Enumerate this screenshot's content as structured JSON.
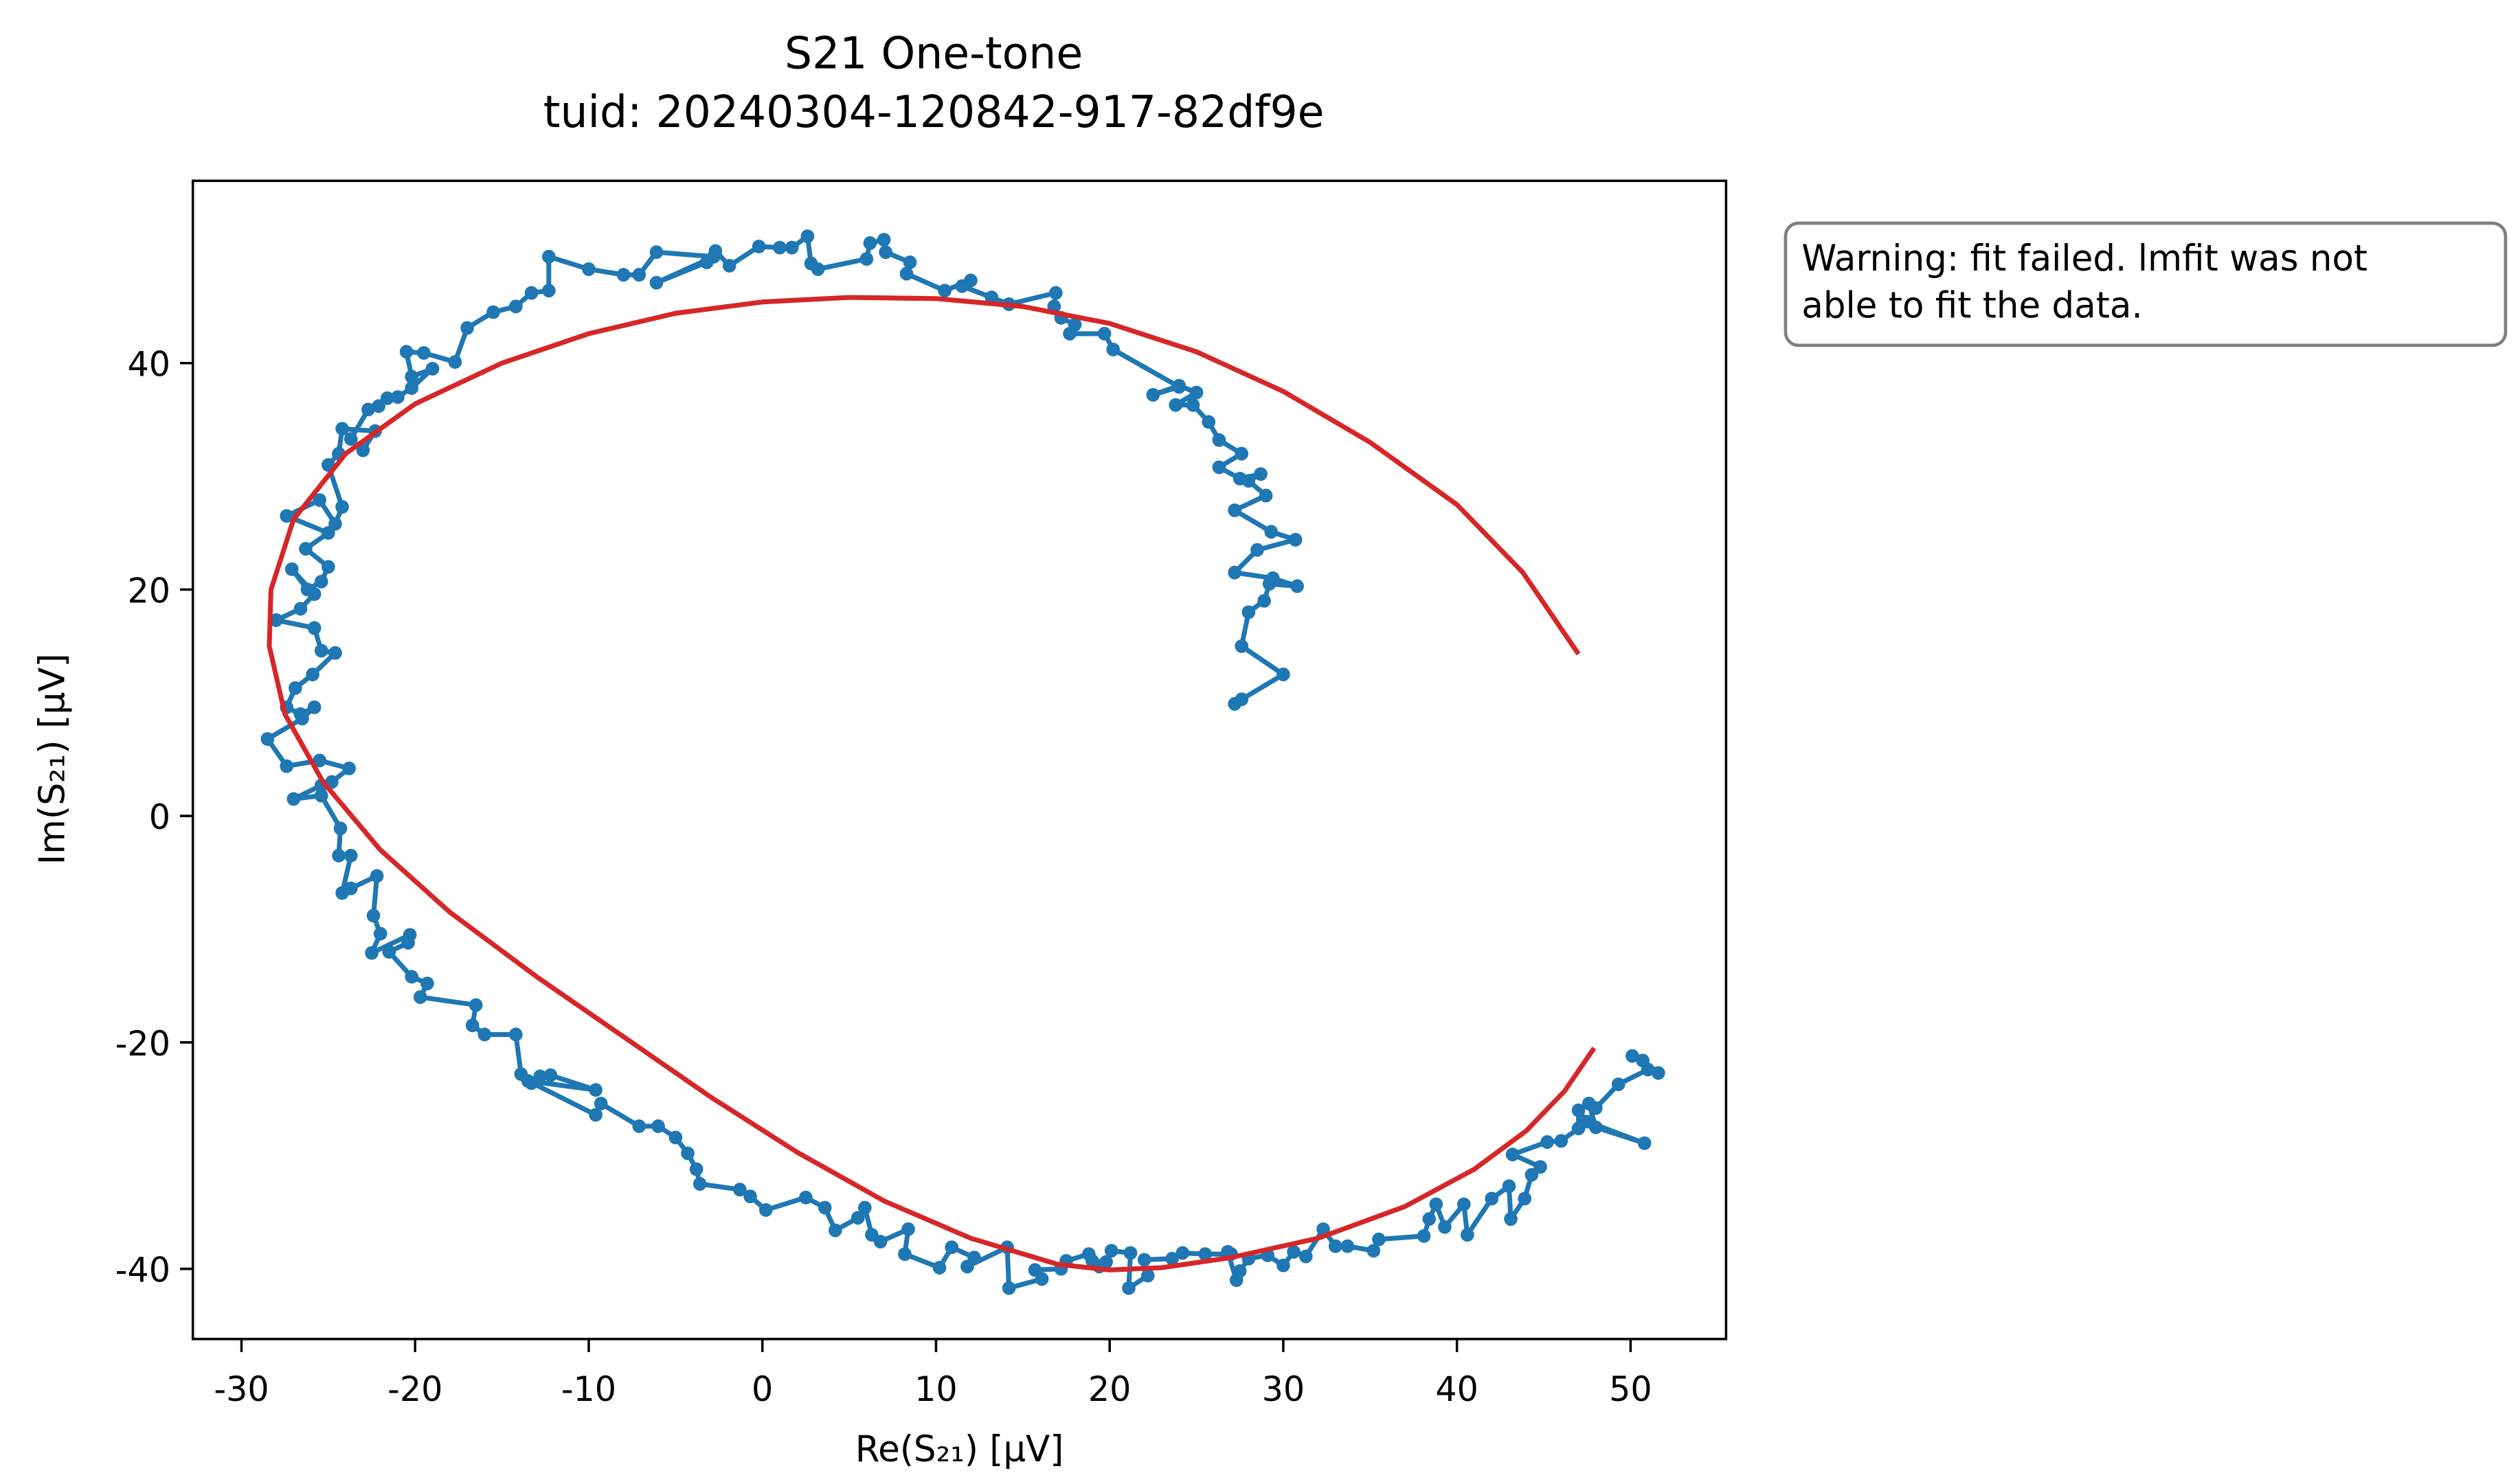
{
  "chart_data": {
    "type": "line",
    "title": "S21 One-tone",
    "subtitle": "tuid: 20240304-120842-917-82df9e",
    "xlabel": "Re(S₂₁) [μV]",
    "ylabel": "Im(S₂₁) [μV]",
    "xlim": [
      -32.8,
      55.5
    ],
    "ylim": [
      -46.2,
      56.1
    ],
    "xticks": [
      -30,
      -20,
      -10,
      0,
      10,
      20,
      30,
      40,
      50
    ],
    "yticks": [
      -40,
      -20,
      0,
      20,
      40
    ],
    "annotation": [
      "Warning: fit failed. lmfit was not",
      "able to fit the data."
    ],
    "series": [
      {
        "color": "#1f77b4",
        "marker": true,
        "x": [
          27.2,
          27.6,
          30.0,
          27.6,
          28.0,
          28.9,
          29.2,
          30.8,
          29.4,
          27.2,
          28.5,
          30.7,
          29.3,
          27.2,
          29.0,
          28.0,
          28.7,
          27.5,
          26.3,
          27.6,
          26.3,
          25.7,
          24.8,
          23.8,
          25.0,
          24.0,
          22.5,
          24.0,
          20.2,
          19.7,
          17.7,
          18.0,
          17.2,
          16.8,
          16.9,
          14.2,
          13.2,
          11.5,
          12.0,
          10.5,
          8.3,
          8.5,
          7.1,
          7.0,
          6.2,
          6.0,
          3.2,
          2.8,
          2.6,
          1.7,
          1.0,
          -0.2,
          -1.9,
          -2.7,
          -3.2,
          -6.1,
          -2.8,
          -6.1,
          -7.1,
          -8.0,
          -10.0,
          -12.3,
          -12.3,
          -13.3,
          -14.2,
          -15.5,
          -17.0,
          -17.7,
          -19.5,
          -20.5,
          -20.2,
          -19.0,
          -20.2,
          -21.0,
          -21.6,
          -22.1,
          -22.7,
          -23.7,
          -23.0,
          -22.3,
          -24.2,
          -24.4,
          -25.0,
          -24.2,
          -24.6,
          -25.5,
          -27.4,
          -25.0,
          -26.3,
          -25.0,
          -25.4,
          -26.2,
          -27.1,
          -25.8,
          -26.6,
          -28.0,
          -25.8,
          -25.4,
          -24.6,
          -25.9,
          -26.9,
          -27.4,
          -26.6,
          -25.8,
          -26.5,
          -28.5,
          -27.4,
          -25.5,
          -23.8,
          -24.8,
          -25.4,
          -27.0,
          -25.4,
          -24.3,
          -24.4,
          -23.7,
          -24.2,
          -23.7,
          -22.2,
          -22.4,
          -22.0,
          -22.5,
          -20.3,
          -20.4,
          -21.5,
          -20.2,
          -19.3,
          -19.7,
          -16.5,
          -16.7,
          -16.0,
          -14.2,
          -13.9,
          -13.3,
          -12.8,
          -12.2,
          -9.6,
          -13.5,
          -9.6,
          -9.3,
          -7.1,
          -6.0,
          -5.0,
          -4.3,
          -3.8,
          -3.6,
          -1.3,
          -0.7,
          0.2,
          2.5,
          3.6,
          4.2,
          5.5,
          5.9,
          6.3,
          6.8,
          8.4,
          8.2,
          10.2,
          10.9,
          12.2,
          11.8,
          14.1,
          14.2,
          16.1,
          15.7,
          17.2,
          17.5,
          18.8,
          19.4,
          19.0,
          19.8,
          20.1,
          21.2,
          21.1,
          22.2,
          22.0,
          23.6,
          24.2,
          25.5,
          27.0,
          26.8,
          27.3,
          27.5,
          28.0,
          29.1,
          30.0,
          30.6,
          31.3,
          32.3,
          33.0,
          33.7,
          35.2,
          35.5,
          38.1,
          38.4,
          38.8,
          39.3,
          40.4,
          40.6,
          42.0,
          43.0,
          43.1,
          43.9,
          44.3,
          44.8,
          43.2,
          45.2,
          46.0,
          47.0,
          47.0,
          47.5,
          50.8,
          48.0,
          47.6,
          48.0,
          49.3,
          51.0,
          51.6,
          50.7,
          50.1
        ],
        "y": [
          9.9,
          10.3,
          12.5,
          15.0,
          18.0,
          19.0,
          20.5,
          20.3,
          21.0,
          21.5,
          23.5,
          24.4,
          25.1,
          27.0,
          28.3,
          29.6,
          30.2,
          29.8,
          30.8,
          32.0,
          33.2,
          34.8,
          36.3,
          36.3,
          37.4,
          38.0,
          37.2,
          37.9,
          41.2,
          42.6,
          42.6,
          43.4,
          44.0,
          45.0,
          46.2,
          45.2,
          45.8,
          46.8,
          47.3,
          46.4,
          47.9,
          48.9,
          49.8,
          50.9,
          50.6,
          49.2,
          48.3,
          48.8,
          51.2,
          50.2,
          50.2,
          50.3,
          48.6,
          49.9,
          48.9,
          47.1,
          49.4,
          49.8,
          47.8,
          47.8,
          48.3,
          49.4,
          46.4,
          46.2,
          45.0,
          44.5,
          43.1,
          40.1,
          40.9,
          41.0,
          38.8,
          39.5,
          37.8,
          37.0,
          36.9,
          36.2,
          35.9,
          33.3,
          32.3,
          34.0,
          34.2,
          32.0,
          31.0,
          27.3,
          25.8,
          27.9,
          26.5,
          25.0,
          23.6,
          22.0,
          20.7,
          20.0,
          21.8,
          19.6,
          18.3,
          17.3,
          16.6,
          14.6,
          14.4,
          12.5,
          11.3,
          9.6,
          9.0,
          9.6,
          8.6,
          6.8,
          4.4,
          4.9,
          4.2,
          3.0,
          2.7,
          1.5,
          1.8,
          -1.1,
          -3.5,
          -3.5,
          -6.8,
          -6.4,
          -5.3,
          -8.8,
          -10.4,
          -12.1,
          -10.5,
          -11.2,
          -12.0,
          -14.2,
          -14.8,
          -16.0,
          -16.7,
          -18.5,
          -19.3,
          -19.3,
          -22.8,
          -23.6,
          -23.0,
          -22.9,
          -24.2,
          -23.4,
          -26.4,
          -25.4,
          -27.4,
          -27.4,
          -28.4,
          -29.8,
          -31.2,
          -32.5,
          -33.0,
          -33.6,
          -34.8,
          -33.7,
          -34.6,
          -36.6,
          -35.5,
          -34.6,
          -37.0,
          -37.6,
          -36.5,
          -38.7,
          -39.9,
          -38.1,
          -39.0,
          -39.8,
          -38.1,
          -41.7,
          -40.9,
          -40.1,
          -40.0,
          -39.3,
          -38.7,
          -39.8,
          -39.3,
          -39.4,
          -38.4,
          -38.6,
          -41.7,
          -40.6,
          -39.2,
          -39.1,
          -38.6,
          -38.7,
          -38.7,
          -38.5,
          -41.0,
          -40.2,
          -39.1,
          -38.8,
          -39.7,
          -38.5,
          -38.9,
          -36.5,
          -38.0,
          -38.0,
          -38.4,
          -37.4,
          -37.1,
          -35.6,
          -34.3,
          -36.3,
          -34.3,
          -37.0,
          -33.8,
          -32.7,
          -35.6,
          -33.8,
          -31.7,
          -31.0,
          -29.9,
          -28.8,
          -28.7,
          -27.6,
          -26.0,
          -27.0,
          -28.9,
          -27.5,
          -25.4,
          -25.8,
          -23.7,
          -22.4,
          -22.7,
          -21.6,
          -21.2
        ]
      },
      {
        "color": "#d62728",
        "marker": false,
        "x": [
          47,
          43.8,
          40,
          35,
          30,
          25,
          20,
          15,
          10,
          5,
          0,
          -5,
          -10,
          -15,
          -20,
          -24,
          -27,
          -28.3,
          -28.4,
          -27.5,
          -25.3,
          -22,
          -18,
          -13,
          -8,
          -3,
          2,
          7,
          12,
          17,
          20,
          23,
          27,
          32,
          37,
          41,
          44,
          46.2,
          47.9
        ],
        "y": [
          14.3,
          21.5,
          27.5,
          33,
          37.5,
          41,
          43.5,
          45,
          45.7,
          45.8,
          45.4,
          44.4,
          42.6,
          40,
          36.4,
          32,
          26.2,
          20,
          15,
          9,
          3,
          -3,
          -8.5,
          -14.2,
          -19.5,
          -24.8,
          -29.7,
          -34,
          -37.3,
          -39.6,
          -40.1,
          -39.9,
          -39,
          -37.3,
          -34.5,
          -31.2,
          -27.8,
          -24.3,
          -20.5
        ]
      }
    ]
  }
}
